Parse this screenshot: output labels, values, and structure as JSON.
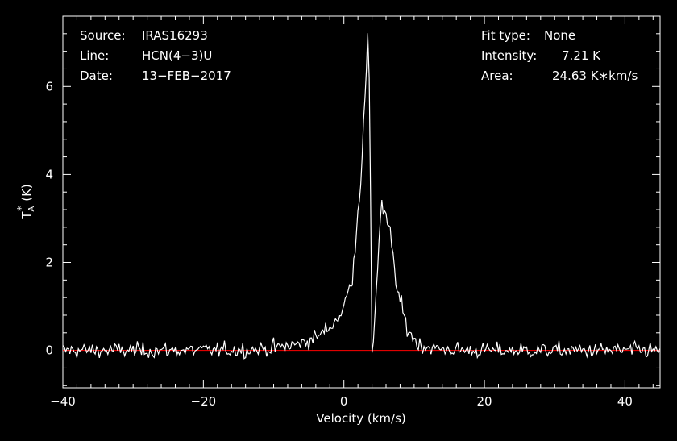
{
  "header": {
    "source_label": "Source:",
    "source_value": "IRAS16293",
    "line_label": "Line:",
    "line_value": "HCN(4−3)U",
    "date_label": "Date:",
    "date_value": "13−FEB−2017",
    "fit_label": "Fit type:",
    "fit_value": "None",
    "intensity_label": "Intensity:",
    "intensity_value": "7.21 K",
    "area_label": "Area:",
    "area_value": "24.63 K∗km/s"
  },
  "colors": {
    "background": "#000000",
    "spectrum": "#ffffff",
    "baseline": "#ff0000",
    "axes": "#ffffff"
  },
  "chart_data": {
    "type": "line",
    "title": "",
    "xlabel": "Velocity (km/s)",
    "ylabel_main": "T",
    "ylabel_sub": "A",
    "ylabel_sup": "*",
    "ylabel_unit": "(K)",
    "xlim": [
      -40,
      45
    ],
    "ylim": [
      -0.85,
      7.6
    ],
    "xticks": [
      -40,
      -20,
      0,
      20,
      40
    ],
    "yticks": [
      0,
      2,
      4,
      6
    ],
    "xtick_labels": [
      "−40",
      "−20",
      "0",
      "20",
      "40"
    ],
    "ytick_labels": [
      "0",
      "2",
      "4",
      "6"
    ],
    "baseline_value": 0,
    "channel_width_kms": 0.2,
    "noise_rms_K": 0.12,
    "grid": false,
    "legend": "none",
    "features": [
      {
        "x": 3.5,
        "y": 7.21
      },
      {
        "x": 2.4,
        "y": 3.9
      },
      {
        "x": 1.2,
        "y": 1.65
      },
      {
        "x": -0.2,
        "y": 0.9
      },
      {
        "x": 4.1,
        "y": -0.05
      },
      {
        "x": 5.3,
        "y": 3.35
      },
      {
        "x": 6.6,
        "y": 2.65
      },
      {
        "x": 7.5,
        "y": 1.45
      },
      {
        "x": 9.0,
        "y": 0.5
      },
      {
        "x": 10.5,
        "y": 0.15
      }
    ]
  }
}
